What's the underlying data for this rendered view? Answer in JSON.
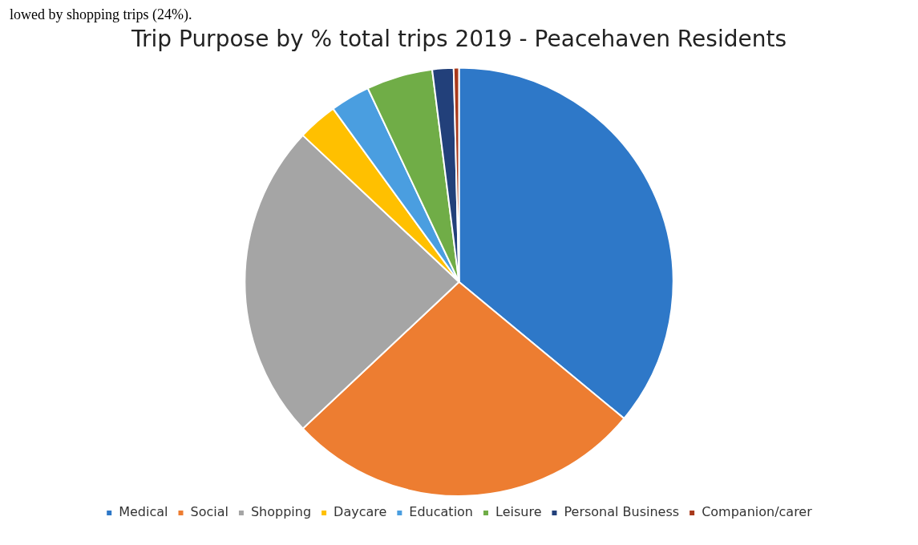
{
  "chart_data": {
    "type": "pie",
    "title": "Trip Purpose by % total trips 2019 - Peacehaven Residents",
    "categories": [
      "Medical",
      "Social",
      "Shopping",
      "Daycare",
      "Education",
      "Leisure",
      "Personal Business",
      "Companion/carer"
    ],
    "values": [
      36,
      27,
      24,
      3,
      3,
      5,
      1.6,
      0.4
    ],
    "colors": [
      "#2e78c8",
      "#ed7d31",
      "#a5a5a5",
      "#ffc000",
      "#4a9ee0",
      "#70ad47",
      "#22407a",
      "#a83a1c"
    ],
    "legend": "bottom",
    "annotations": [
      "lowed by shopping trips (24%)."
    ]
  }
}
